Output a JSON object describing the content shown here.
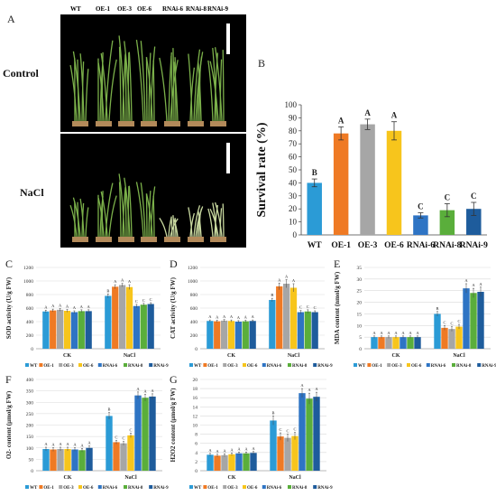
{
  "colors": {
    "WT": "#2b9bd6",
    "OE-1": "#ef7a24",
    "OE-3": "#a6a6a6",
    "OE-6": "#f7c51c",
    "RNAi-6": "#2e74c4",
    "RNAi-8": "#5aae3b",
    "RNAi-9": "#1e5c9c"
  },
  "panel_a": {
    "letter": "A",
    "genotypes": [
      "WT",
      "OE-1",
      "OE-3",
      "OE-6",
      "RNAi-6",
      "RNAi-8",
      "RNAi-9"
    ],
    "row_labels": [
      "Control",
      "NaCl"
    ]
  },
  "chart_data": [
    {
      "id": "B",
      "type": "bar",
      "letter": "B",
      "categories": [
        "WT",
        "OE-1",
        "OE-3",
        "OE-6",
        "RNAi-6",
        "RNAi-8",
        "RNAi-9"
      ],
      "values": [
        40,
        78,
        85,
        80,
        15,
        19,
        20
      ],
      "errors": [
        3,
        5,
        4,
        7,
        2,
        5,
        5
      ],
      "sig": [
        "B",
        "A",
        "A",
        "A",
        "C",
        "C",
        "C"
      ],
      "ylabel": "Survival rate (%)",
      "ylim": [
        0,
        100
      ],
      "yticks": [
        0,
        10,
        20,
        30,
        40,
        50,
        60,
        70,
        80,
        90,
        100
      ]
    },
    {
      "id": "C",
      "type": "bar",
      "letter": "C",
      "groups": [
        "CK",
        "NaCl"
      ],
      "ylabel": "SOD activity (U/g FW)",
      "ylim": [
        0,
        1200
      ],
      "yticks": [
        0,
        200,
        400,
        600,
        800,
        1000,
        1200
      ],
      "series": [
        {
          "name": "WT",
          "values": [
            550,
            780
          ],
          "errors": [
            20,
            30
          ],
          "sig": [
            "A",
            "B"
          ]
        },
        {
          "name": "OE-1",
          "values": [
            565,
            915
          ],
          "errors": [
            20,
            30
          ],
          "sig": [
            "A",
            "A"
          ]
        },
        {
          "name": "OE-3",
          "values": [
            575,
            940
          ],
          "errors": [
            20,
            25
          ],
          "sig": [
            "A",
            "A"
          ]
        },
        {
          "name": "OE-6",
          "values": [
            560,
            910
          ],
          "errors": [
            20,
            35
          ],
          "sig": [
            "A",
            "A"
          ]
        },
        {
          "name": "RNAi-6",
          "values": [
            540,
            630
          ],
          "errors": [
            20,
            25
          ],
          "sig": [
            "A",
            "C"
          ]
        },
        {
          "name": "RNAi-8",
          "values": [
            555,
            650
          ],
          "errors": [
            20,
            20
          ],
          "sig": [
            "A",
            "C"
          ]
        },
        {
          "name": "RNAi-9",
          "values": [
            555,
            660
          ],
          "errors": [
            20,
            20
          ],
          "sig": [
            "A",
            "C"
          ]
        }
      ]
    },
    {
      "id": "D",
      "type": "bar",
      "letter": "D",
      "groups": [
        "CK",
        "NaCl"
      ],
      "ylabel": "CAT activity (U/g FW)",
      "ylim": [
        0,
        1200
      ],
      "yticks": [
        0,
        200,
        400,
        600,
        800,
        1000,
        1200
      ],
      "series": [
        {
          "name": "WT",
          "values": [
            410,
            720
          ],
          "errors": [
            15,
            25
          ],
          "sig": [
            "A",
            "B"
          ]
        },
        {
          "name": "OE-1",
          "values": [
            405,
            920
          ],
          "errors": [
            15,
            50
          ],
          "sig": [
            "A",
            "A"
          ]
        },
        {
          "name": "OE-3",
          "values": [
            415,
            960
          ],
          "errors": [
            15,
            60
          ],
          "sig": [
            "A",
            "A"
          ]
        },
        {
          "name": "OE-6",
          "values": [
            410,
            900
          ],
          "errors": [
            15,
            60
          ],
          "sig": [
            "A",
            "A"
          ]
        },
        {
          "name": "RNAi-6",
          "values": [
            400,
            540
          ],
          "errors": [
            15,
            25
          ],
          "sig": [
            "A",
            "C"
          ]
        },
        {
          "name": "RNAi-8",
          "values": [
            405,
            550
          ],
          "errors": [
            15,
            25
          ],
          "sig": [
            "A",
            "C"
          ]
        },
        {
          "name": "RNAi-9",
          "values": [
            410,
            540
          ],
          "errors": [
            15,
            20
          ],
          "sig": [
            "A",
            "C"
          ]
        }
      ]
    },
    {
      "id": "E",
      "type": "bar",
      "letter": "E",
      "groups": [
        "CK",
        "NaCl"
      ],
      "ylabel": "MDA content (nmol/g FW)",
      "ylim": [
        0,
        35
      ],
      "yticks": [
        0,
        5,
        10,
        15,
        20,
        25,
        30,
        35
      ],
      "series": [
        {
          "name": "WT",
          "values": [
            5,
            15
          ],
          "errors": [
            0.5,
            1.0
          ],
          "sig": [
            "A",
            "B"
          ]
        },
        {
          "name": "OE-1",
          "values": [
            5,
            9
          ],
          "errors": [
            0.5,
            1.0
          ],
          "sig": [
            "A",
            "C"
          ]
        },
        {
          "name": "OE-3",
          "values": [
            5,
            8.5
          ],
          "errors": [
            0.5,
            1.0
          ],
          "sig": [
            "A",
            "C"
          ]
        },
        {
          "name": "OE-6",
          "values": [
            5,
            9.5
          ],
          "errors": [
            0.5,
            1.0
          ],
          "sig": [
            "A",
            "C"
          ]
        },
        {
          "name": "RNAi-6",
          "values": [
            5,
            26
          ],
          "errors": [
            0.5,
            2.0
          ],
          "sig": [
            "A",
            "A"
          ]
        },
        {
          "name": "RNAi-8",
          "values": [
            5,
            24
          ],
          "errors": [
            0.5,
            2.0
          ],
          "sig": [
            "A",
            "A"
          ]
        },
        {
          "name": "RNAi-9",
          "values": [
            5,
            24.5
          ],
          "errors": [
            0.5,
            2.0
          ],
          "sig": [
            "A",
            "A"
          ]
        }
      ]
    },
    {
      "id": "F",
      "type": "bar",
      "letter": "F",
      "groups": [
        "CK",
        "NaCl"
      ],
      "ylabel": "O2- content (μmol/g FW)",
      "ylim": [
        0,
        400
      ],
      "yticks": [
        0,
        50,
        100,
        150,
        200,
        250,
        300,
        350,
        400
      ],
      "series": [
        {
          "name": "WT",
          "values": [
            95,
            240
          ],
          "errors": [
            8,
            15
          ],
          "sig": [
            "A",
            "B"
          ]
        },
        {
          "name": "OE-1",
          "values": [
            93,
            125
          ],
          "errors": [
            8,
            8
          ],
          "sig": [
            "A",
            "C"
          ]
        },
        {
          "name": "OE-3",
          "values": [
            95,
            120
          ],
          "errors": [
            8,
            8
          ],
          "sig": [
            "A",
            "C"
          ]
        },
        {
          "name": "OE-6",
          "values": [
            95,
            155
          ],
          "errors": [
            8,
            10
          ],
          "sig": [
            "A",
            "C"
          ]
        },
        {
          "name": "RNAi-6",
          "values": [
            93,
            330
          ],
          "errors": [
            8,
            15
          ],
          "sig": [
            "A",
            "A"
          ]
        },
        {
          "name": "RNAi-8",
          "values": [
            90,
            320
          ],
          "errors": [
            8,
            15
          ],
          "sig": [
            "A",
            "A"
          ]
        },
        {
          "name": "RNAi-9",
          "values": [
            100,
            325
          ],
          "errors": [
            8,
            12
          ],
          "sig": [
            "A",
            "A"
          ]
        }
      ]
    },
    {
      "id": "G",
      "type": "bar",
      "letter": "G",
      "groups": [
        "CK",
        "NaCl"
      ],
      "ylabel": "H2O2 content (μmol/g FW)",
      "ylim": [
        0,
        20
      ],
      "yticks": [
        0,
        2,
        4,
        6,
        8,
        10,
        12,
        14,
        16,
        18,
        20
      ],
      "series": [
        {
          "name": "WT",
          "values": [
            3.5,
            11
          ],
          "errors": [
            0.3,
            1.0
          ],
          "sig": [
            "A",
            "B"
          ]
        },
        {
          "name": "OE-1",
          "values": [
            3.3,
            7.5
          ],
          "errors": [
            0.3,
            0.8
          ],
          "sig": [
            "A",
            "C"
          ]
        },
        {
          "name": "OE-3",
          "values": [
            3.4,
            7.2
          ],
          "errors": [
            0.3,
            0.8
          ],
          "sig": [
            "A",
            "C"
          ]
        },
        {
          "name": "OE-6",
          "values": [
            3.6,
            7.6
          ],
          "errors": [
            0.3,
            0.8
          ],
          "sig": [
            "A",
            "C"
          ]
        },
        {
          "name": "RNAi-6",
          "values": [
            3.8,
            17
          ],
          "errors": [
            0.3,
            1.0
          ],
          "sig": [
            "A",
            "A"
          ]
        },
        {
          "name": "RNAi-8",
          "values": [
            3.8,
            15.8
          ],
          "errors": [
            0.3,
            1.2
          ],
          "sig": [
            "A",
            "A"
          ]
        },
        {
          "name": "RNAi-9",
          "values": [
            3.9,
            16.2
          ],
          "errors": [
            0.3,
            1.0
          ],
          "sig": [
            "A",
            "A"
          ]
        }
      ]
    }
  ]
}
